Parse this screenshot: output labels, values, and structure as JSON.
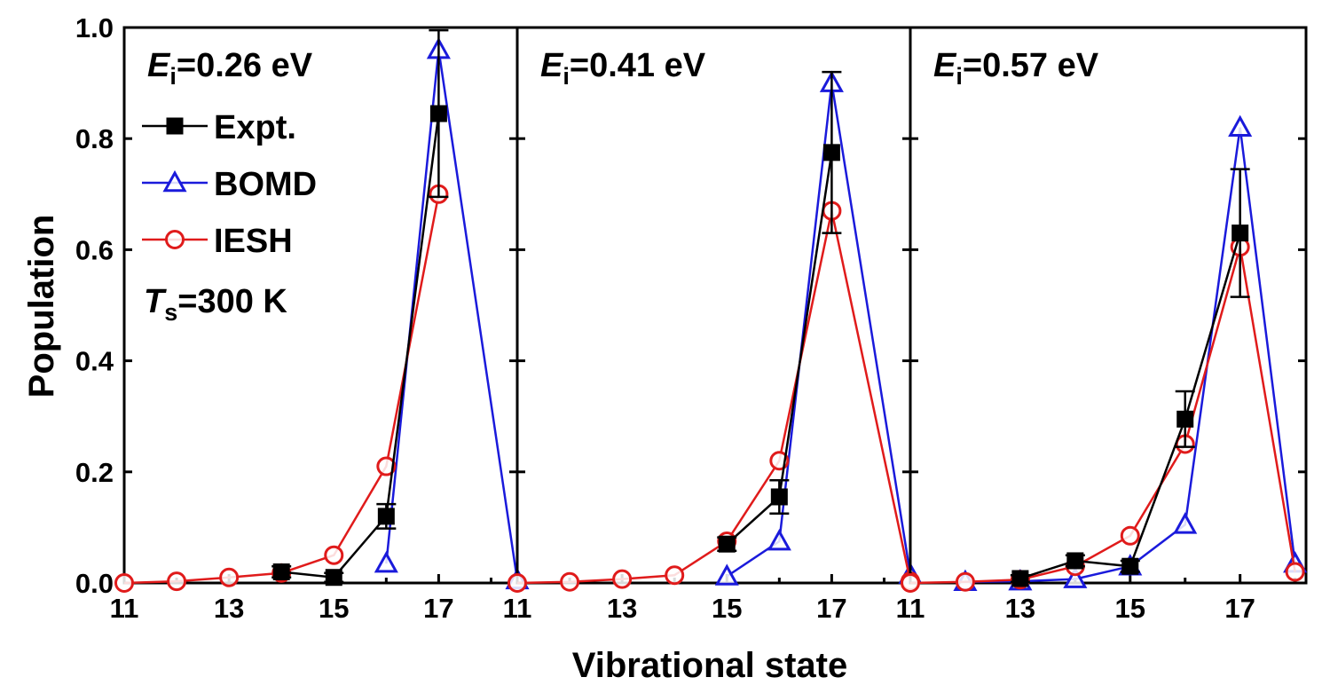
{
  "chart_data": {
    "type": "line",
    "ylabel": "Population",
    "xlabel": "Vibrational state",
    "ylim": [
      0,
      1.0
    ],
    "yticks": [
      "0.0",
      "0.2",
      "0.4",
      "0.6",
      "0.8",
      "1.0"
    ],
    "xticks": [
      "11",
      "13",
      "15",
      "17"
    ],
    "legend": {
      "placement": "upper-left of first panel",
      "entries": [
        {
          "label": "Expt.",
          "color": "#000000",
          "marker": "filled-square"
        },
        {
          "label": "BOMD",
          "color": "#1a1adb",
          "marker": "open-triangle"
        },
        {
          "label": "IESH",
          "color": "#e01b1b",
          "marker": "open-circle"
        }
      ]
    },
    "note": {
      "symbol": "T",
      "sub": "s",
      "text": "=300 K"
    },
    "panels": [
      {
        "title": {
          "symbol": "E",
          "sub": "i",
          "text": "=0.26 eV"
        },
        "xlim": [
          11,
          18.5
        ],
        "series": [
          {
            "name": "Expt.",
            "x": [
              14,
              15,
              16,
              17
            ],
            "y": [
              0.02,
              0.01,
              0.12,
              0.845
            ],
            "err": [
              0.01,
              0.008,
              0.022,
              0.15
            ]
          },
          {
            "name": "BOMD",
            "x": [
              16,
              17,
              18.5
            ],
            "y": [
              0.035,
              0.96,
              0.005
            ]
          },
          {
            "name": "IESH",
            "x": [
              11,
              12,
              13,
              14,
              15,
              16,
              17
            ],
            "y": [
              0.0,
              0.003,
              0.01,
              0.018,
              0.05,
              0.21,
              0.7
            ]
          }
        ]
      },
      {
        "title": {
          "symbol": "E",
          "sub": "i",
          "text": "=0.41 eV"
        },
        "xlim": [
          11,
          18.5
        ],
        "series": [
          {
            "name": "Expt.",
            "x": [
              15,
              16,
              17
            ],
            "y": [
              0.07,
              0.155,
              0.775
            ],
            "err": [
              0.012,
              0.03,
              0.145
            ]
          },
          {
            "name": "BOMD",
            "x": [
              15,
              16,
              17,
              18.5
            ],
            "y": [
              0.012,
              0.075,
              0.9,
              0.015
            ]
          },
          {
            "name": "IESH",
            "x": [
              11,
              12,
              13,
              14,
              15,
              16,
              17,
              18.5
            ],
            "y": [
              0.0,
              0.002,
              0.007,
              0.014,
              0.075,
              0.22,
              0.67,
              0.003
            ]
          }
        ]
      },
      {
        "title": {
          "symbol": "E",
          "sub": "i",
          "text": "=0.57 eV"
        },
        "xlim": [
          11,
          18.2
        ],
        "series": [
          {
            "name": "Expt.",
            "x": [
              13,
              14,
              15,
              16,
              17
            ],
            "y": [
              0.008,
              0.04,
              0.03,
              0.295,
              0.63
            ],
            "err": [
              0.006,
              0.01,
              0.01,
              0.05,
              0.115
            ]
          },
          {
            "name": "BOMD",
            "x": [
              12,
              13,
              14,
              15,
              16,
              17,
              18
            ],
            "y": [
              0.002,
              0.003,
              0.007,
              0.03,
              0.105,
              0.82,
              0.035
            ]
          },
          {
            "name": "IESH",
            "x": [
              11,
              12,
              13,
              14,
              15,
              16,
              17,
              18
            ],
            "y": [
              0.0,
              0.002,
              0.006,
              0.03,
              0.085,
              0.25,
              0.605,
              0.02
            ]
          }
        ]
      }
    ]
  }
}
